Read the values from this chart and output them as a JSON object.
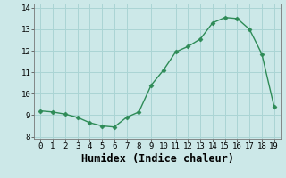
{
  "x": [
    0,
    1,
    2,
    3,
    4,
    5,
    6,
    7,
    8,
    9,
    10,
    11,
    12,
    13,
    14,
    15,
    16,
    17,
    18,
    19
  ],
  "y": [
    9.2,
    9.15,
    9.05,
    8.9,
    8.65,
    8.5,
    8.45,
    8.9,
    9.15,
    10.4,
    11.1,
    11.95,
    12.2,
    12.55,
    13.3,
    13.55,
    13.5,
    13.0,
    11.85,
    9.4
  ],
  "xlabel": "Humidex (Indice chaleur)",
  "xlim": [
    -0.5,
    19.5
  ],
  "ylim": [
    7.9,
    14.2
  ],
  "yticks": [
    8,
    9,
    10,
    11,
    12,
    13,
    14
  ],
  "xticks": [
    0,
    1,
    2,
    3,
    4,
    5,
    6,
    7,
    8,
    9,
    10,
    11,
    12,
    13,
    14,
    15,
    16,
    17,
    18,
    19
  ],
  "line_color": "#2e8b57",
  "marker": "D",
  "marker_size": 2.5,
  "bg_color": "#cce8e8",
  "grid_color": "#aad4d4",
  "tick_label_fontsize": 6.5,
  "xlabel_fontsize": 8.5,
  "line_width": 1.0
}
